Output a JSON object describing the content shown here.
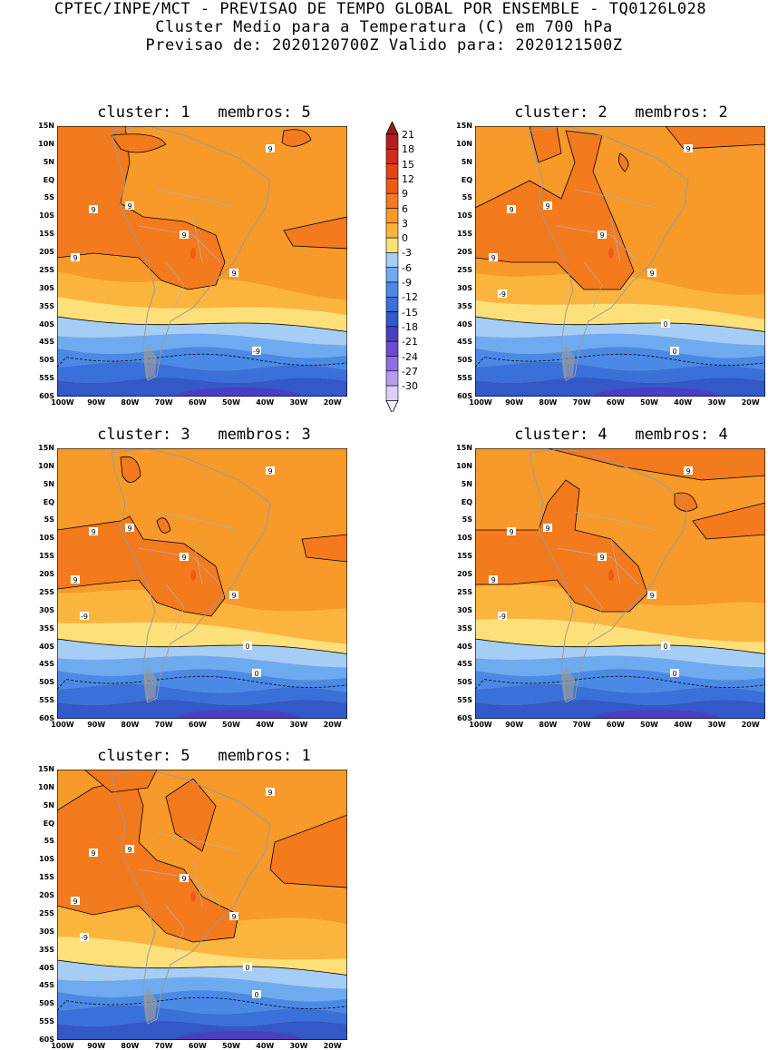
{
  "header": {
    "line1": "CPTEC/INPE/MCT - PREVISAO DE TEMPO GLOBAL POR ENSEMBLE - TQ0126L028",
    "line2": "Cluster Medio para a Temperatura (C) em 700 hPa",
    "line3": "Previsao de: 2020120700Z   Valido para: 2020121500Z"
  },
  "axes": {
    "lat_labels": [
      "15N",
      "10N",
      "5N",
      "EQ",
      "5S",
      "10S",
      "15S",
      "20S",
      "25S",
      "30S",
      "35S",
      "40S",
      "45S",
      "50S",
      "55S",
      "60S"
    ],
    "lon_labels": [
      "100W",
      "90W",
      "80W",
      "70W",
      "60W",
      "50W",
      "40W",
      "30W",
      "20W"
    ]
  },
  "colorbar": {
    "levels": [
      "21",
      "18",
      "15",
      "12",
      "9",
      "6",
      "3",
      "0",
      "-3",
      "-6",
      "-9",
      "-12",
      "-15",
      "-18",
      "-21",
      "-24",
      "-27",
      "-30"
    ],
    "colors": [
      "#b51f1f",
      "#d42a1a",
      "#e8401b",
      "#f05a19",
      "#f47a1e",
      "#f89a2a",
      "#fbb53f",
      "#fde07a",
      "#a6cdf5",
      "#6eaaf0",
      "#4a8ae6",
      "#3a70da",
      "#3358c8",
      "#4a3fc0",
      "#6b4ccf",
      "#8e6ee0",
      "#b59cec",
      "#dcd0f6"
    ],
    "top_arrow_color": "#a01818",
    "bottom_arrow_color": "#eeeeff"
  },
  "panels": [
    {
      "title": "cluster: 1   membros: 5",
      "contour_labels": [
        "9",
        "9",
        "9",
        "9",
        "9",
        "9",
        "-9"
      ]
    },
    {
      "title": "cluster: 2   membros: 2",
      "contour_labels": [
        "9",
        "9",
        "9",
        "9",
        "9",
        "9",
        "0",
        "0",
        "-9"
      ]
    },
    {
      "title": "cluster: 3   membros: 3",
      "contour_labels": [
        "9",
        "9",
        "9",
        "9",
        "9",
        "9",
        "0",
        "0",
        "-9"
      ]
    },
    {
      "title": "cluster: 4   membros: 4",
      "contour_labels": [
        "9",
        "9",
        "9",
        "9",
        "9",
        "9",
        "0",
        "0",
        "-9"
      ]
    },
    {
      "title": "cluster: 5   membros: 1",
      "contour_labels": [
        "9",
        "9",
        "9",
        "9",
        "9",
        "9",
        "0",
        "0",
        "-9"
      ]
    }
  ]
}
